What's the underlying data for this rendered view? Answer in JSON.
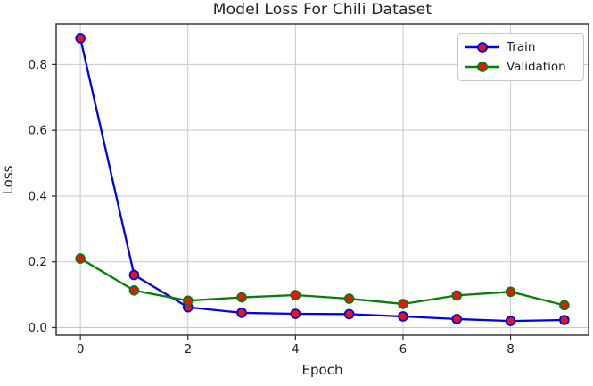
{
  "figure": {
    "title": "Model Loss For Chili Dataset"
  },
  "chart_data": {
    "type": "line",
    "title": "Model Loss For Chili Dataset",
    "xlabel": "Epoch",
    "ylabel": "Loss",
    "x": [
      0,
      1,
      2,
      3,
      4,
      5,
      6,
      7,
      8,
      9
    ],
    "series": [
      {
        "name": "Train",
        "color": "#0202e6",
        "marker": "circle",
        "marker_face": "#e81414",
        "values": [
          0.88,
          0.16,
          0.062,
          0.045,
          0.042,
          0.041,
          0.034,
          0.026,
          0.02,
          0.023
        ]
      },
      {
        "name": "Validation",
        "color": "#038003",
        "marker": "circle",
        "marker_face": "#e81414",
        "values": [
          0.21,
          0.113,
          0.082,
          0.092,
          0.099,
          0.088,
          0.072,
          0.098,
          0.109,
          0.068
        ]
      }
    ],
    "xticks": [
      "0",
      "2",
      "4",
      "6",
      "8"
    ],
    "yticks": [
      "0.0",
      "0.2",
      "0.4",
      "0.6",
      "0.8"
    ],
    "xlim": [
      -0.45,
      9.45
    ],
    "ylim": [
      -0.023,
      0.923
    ],
    "grid": true,
    "legend_position": "upper right"
  },
  "colors": {
    "grid": "#c6c6c6",
    "spine": "#2a2a2a",
    "tick_text": "#1f1f1f",
    "background": "#ffffff",
    "legend_border": "#c7c7c7"
  }
}
